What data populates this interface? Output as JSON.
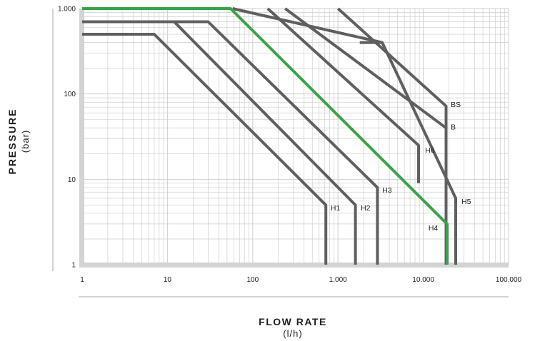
{
  "chart_data": {
    "type": "line",
    "title": "",
    "xlabel": "FLOW RATE",
    "xlabel_unit": "(l/h)",
    "ylabel": "PRESSURE",
    "ylabel_unit": "(bar)",
    "xscale": "log",
    "yscale": "log",
    "xlim": [
      1,
      100000
    ],
    "ylim": [
      1,
      1000
    ],
    "grid": true,
    "legend": "inline labels",
    "x_ticks": [
      {
        "value": 1,
        "label": "1"
      },
      {
        "value": 10,
        "label": "10"
      },
      {
        "value": 100,
        "label": "100"
      },
      {
        "value": 1000,
        "label": "1.000"
      },
      {
        "value": 10000,
        "label": "10.000"
      },
      {
        "value": 100000,
        "label": "100.000"
      }
    ],
    "y_ticks": [
      {
        "value": 1,
        "label": "1"
      },
      {
        "value": 10,
        "label": "10"
      },
      {
        "value": 100,
        "label": "100"
      },
      {
        "value": 1000,
        "label": "1.000"
      }
    ],
    "colors": {
      "default": "#5f5f5f",
      "highlight": "#3aa346",
      "axis": "#d3d3d3",
      "grid": "#cfcfcf"
    },
    "series": [
      {
        "name": "H1",
        "color": "#5f5f5f",
        "points": [
          [
            1,
            500
          ],
          [
            7,
            500
          ],
          [
            720,
            5
          ],
          [
            720,
            1
          ]
        ]
      },
      {
        "name": "H2",
        "color": "#5f5f5f",
        "points": [
          [
            1,
            700
          ],
          [
            12,
            700
          ],
          [
            1600,
            5
          ],
          [
            1600,
            1
          ]
        ]
      },
      {
        "name": "H3",
        "color": "#5f5f5f",
        "points": [
          [
            1,
            700
          ],
          [
            30,
            700
          ],
          [
            2900,
            8
          ],
          [
            2900,
            1
          ]
        ]
      },
      {
        "name": "H4",
        "color": "#3aa346",
        "points": [
          [
            1,
            1000
          ],
          [
            55,
            1000
          ],
          [
            19000,
            3
          ],
          [
            19000,
            1
          ]
        ]
      },
      {
        "name": "H5",
        "color": "#5f5f5f",
        "points": [
          [
            58,
            1000
          ],
          [
            3300,
            400
          ],
          [
            24000,
            6
          ],
          [
            24000,
            1
          ]
        ]
      },
      {
        "name": "H6",
        "color": "#5f5f5f",
        "points": [
          [
            150,
            1000
          ],
          [
            8800,
            25
          ],
          [
            8800,
            9
          ]
        ]
      },
      {
        "name": "B",
        "color": "#5f5f5f",
        "points": [
          [
            240,
            1000
          ],
          [
            18500,
            40
          ],
          [
            18500,
            1
          ]
        ]
      },
      {
        "name": "BS",
        "color": "#5f5f5f",
        "points": [
          [
            1000,
            1000
          ],
          [
            18500,
            72
          ],
          [
            18500,
            1
          ]
        ]
      }
    ],
    "extra_segments": [
      {
        "color": "#5f5f5f",
        "points": [
          [
            1800,
            400
          ],
          [
            3300,
            400
          ]
        ]
      }
    ],
    "annotations": [
      {
        "text": "BS",
        "x": 21000,
        "y": 75
      },
      {
        "text": "B",
        "x": 21000,
        "y": 41
      },
      {
        "text": "H6",
        "x": 10500,
        "y": 22
      },
      {
        "text": "H3",
        "x": 3300,
        "y": 7.5
      },
      {
        "text": "H5",
        "x": 28000,
        "y": 5.5
      },
      {
        "text": "H1",
        "x": 820,
        "y": 4.6
      },
      {
        "text": "H2",
        "x": 1850,
        "y": 4.6
      },
      {
        "text": "H4",
        "x": 11500,
        "y": 2.7
      }
    ]
  }
}
